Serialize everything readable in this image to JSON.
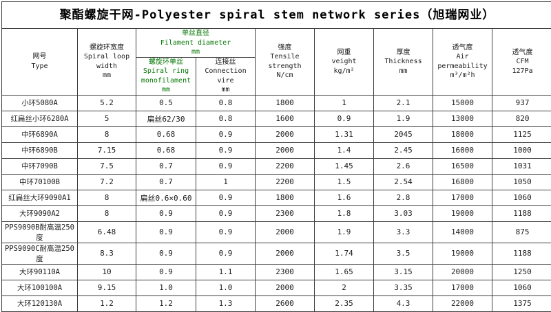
{
  "title": "聚酯螺旋干网-Polyester spiral stem network series（旭瑞网业）",
  "colors": {
    "header_accent_green": "#0a7a0a",
    "border": "#3c3c3c",
    "text": "#1a1a1a",
    "background": "#ffffff"
  },
  "header": {
    "type": {
      "zh": "网号",
      "en": "Type",
      "unit": ""
    },
    "loop_width": {
      "zh": "螺旋环宽度",
      "en": "Spiral loop width",
      "unit": "mm"
    },
    "filament_group": {
      "zh": "单丝直径",
      "en": "Filament diameter",
      "unit": "mm"
    },
    "monofilament": {
      "zh": "螺旋环单丝",
      "en": "Spiral ring monofilament",
      "unit": "mm"
    },
    "connection": {
      "zh": "连接丝",
      "en": "Connection vire",
      "unit": "mm"
    },
    "tensile": {
      "zh": "强度",
      "en": "Tensile strength",
      "unit": "N/cm"
    },
    "weight": {
      "zh": "网重",
      "en": "veight",
      "unit": "kg/m²"
    },
    "thickness": {
      "zh": "厚度",
      "en": "Thickness",
      "unit": "mm"
    },
    "air": {
      "zh": "透气度",
      "en": "Air permeability",
      "unit": "m³/m²h"
    },
    "cfm": {
      "zh": "透气度",
      "en": "CFM",
      "unit": "127Pa"
    }
  },
  "rows": [
    [
      "小环5080A",
      "5.2",
      "0.5",
      "0.8",
      "1800",
      "1",
      "2.1",
      "15000",
      "937"
    ],
    [
      "红扁丝小环6280A",
      "5",
      "扁丝62/30",
      "0.8",
      "1600",
      "0.9",
      "1.9",
      "13000",
      "820"
    ],
    [
      "中环6890A",
      "8",
      "0.68",
      "0.9",
      "2000",
      "1.31",
      "2045",
      "18000",
      "1125"
    ],
    [
      "中环6890B",
      "7.15",
      "0.68",
      "0.9",
      "2000",
      "1.4",
      "2.45",
      "16000",
      "1000"
    ],
    [
      "中环7090B",
      "7.5",
      "0.7",
      "0.9",
      "2200",
      "1.45",
      "2.6",
      "16500",
      "1031"
    ],
    [
      "中环70100B",
      "7.2",
      "0.7",
      "1",
      "2200",
      "1.5",
      "2.54",
      "16800",
      "1050"
    ],
    [
      "红扁丝大环9090A1",
      "8",
      "扁丝0.6×0.60",
      "0.9",
      "1800",
      "1.6",
      "2.8",
      "17000",
      "1060"
    ],
    [
      "大环9090A2",
      "8",
      "0.9",
      "0.9",
      "2300",
      "1.8",
      "3.03",
      "19000",
      "1188"
    ],
    [
      "PPS9090B耐高温250度",
      "6.48",
      "0.9",
      "0.9",
      "2000",
      "1.9",
      "3.3",
      "14000",
      "875"
    ],
    [
      "PPS9090C耐高温250度",
      "8.3",
      "0.9",
      "0.9",
      "2000",
      "1.74",
      "3.5",
      "19000",
      "1188"
    ],
    [
      "大环90110A",
      "10",
      "0.9",
      "1.1",
      "2300",
      "1.65",
      "3.15",
      "20000",
      "1250"
    ],
    [
      "大环100100A",
      "9.15",
      "1.0",
      "1.0",
      "2000",
      "2",
      "3.35",
      "17000",
      "1060"
    ],
    [
      "大环120130A",
      "1.2",
      "1.2",
      "1.3",
      "2600",
      "2.35",
      "4.3",
      "22000",
      "1375"
    ]
  ]
}
